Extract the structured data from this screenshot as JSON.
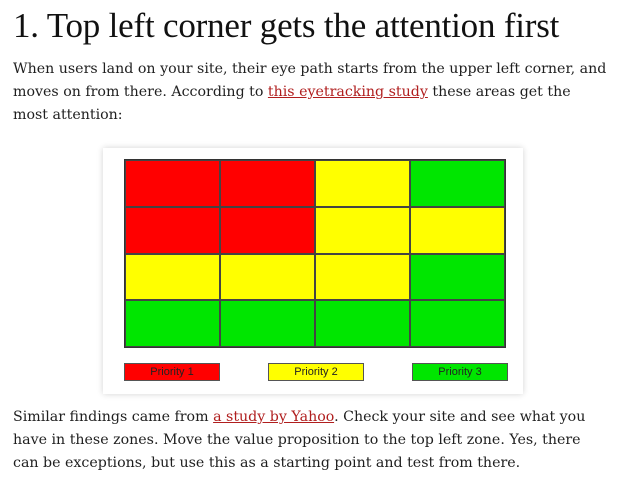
{
  "heading": "1. Top left corner gets the attention first",
  "intro": {
    "before_link": "When users land on your site, their eye path starts from the upper left corner, and moves on from there. According to ",
    "link_text": "this eyetracking study",
    "after_link": " these areas get the most attention:"
  },
  "figure": {
    "colors": {
      "priority_1": "#ff0000",
      "priority_2": "#ffff00",
      "priority_3": "#00e600"
    },
    "grid": [
      [
        "priority_1",
        "priority_1",
        "priority_2",
        "priority_3"
      ],
      [
        "priority_1",
        "priority_1",
        "priority_2",
        "priority_2"
      ],
      [
        "priority_2",
        "priority_2",
        "priority_2",
        "priority_3"
      ],
      [
        "priority_3",
        "priority_3",
        "priority_3",
        "priority_3"
      ]
    ],
    "legend": [
      {
        "key": "priority_1",
        "label": "Priority 1"
      },
      {
        "key": "priority_2",
        "label": "Priority 2"
      },
      {
        "key": "priority_3",
        "label": "Priority 3"
      }
    ]
  },
  "closing": {
    "before_link": "Similar findings came from ",
    "link_text": "a study by Yahoo",
    "after_link": ". Check your site and see what you have in these zones. Move the value proposition to the top left zone. Yes, there can be exceptions, but use this as a starting point and test from there."
  },
  "link_color": "#b01e1e"
}
